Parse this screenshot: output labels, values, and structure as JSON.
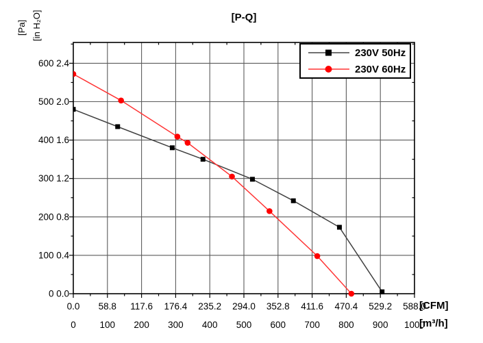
{
  "chart_data": {
    "type": "line",
    "title": "[P-Q]",
    "xlabel_primary": "[CFM]",
    "xlabel_secondary": "[m³/h]",
    "ylabel_primary": "[Pa]",
    "ylabel_secondary": "[in H₂O]",
    "grid": true,
    "legend_position": "top-right",
    "x_axis": {
      "unit": "m3/h",
      "range": [
        0,
        1000
      ],
      "major_step": 100,
      "minor_step": 50,
      "tick_labels_cfm": [
        "0.0",
        "58.8",
        "117.6",
        "176.4",
        "235.2",
        "294.0",
        "352.8",
        "411.6",
        "470.4",
        "529.2",
        "588.0"
      ],
      "tick_labels_m3h": [
        "0",
        "100",
        "200",
        "300",
        "400",
        "500",
        "600",
        "700",
        "800",
        "900",
        "1000"
      ]
    },
    "y_axis": {
      "unit": "Pa",
      "range": [
        0,
        654
      ],
      "major_step": 100,
      "minor_step": 50,
      "tick_labels_pa": [
        "0",
        "100",
        "200",
        "300",
        "400",
        "500",
        "600"
      ],
      "tick_labels_inh2o": [
        "0.0",
        "0.4",
        "0.8",
        "1.2",
        "1.6",
        "2.0",
        "2.4"
      ]
    },
    "series": [
      {
        "name": "230V 50Hz",
        "marker": "square",
        "marker_color": "#000000",
        "line_color": "#404040",
        "points": [
          [
            0,
            480
          ],
          [
            130,
            435
          ],
          [
            290,
            380
          ],
          [
            380,
            350
          ],
          [
            525,
            298
          ],
          [
            645,
            242
          ],
          [
            780,
            173
          ],
          [
            905,
            5
          ]
        ]
      },
      {
        "name": "230V 60Hz",
        "marker": "circle",
        "marker_color": "#ff0000",
        "line_color": "#ff3333",
        "points": [
          [
            0,
            572
          ],
          [
            140,
            503
          ],
          [
            305,
            409
          ],
          [
            335,
            393
          ],
          [
            465,
            305
          ],
          [
            575,
            215
          ],
          [
            715,
            98
          ],
          [
            815,
            0
          ]
        ]
      }
    ],
    "colors": {
      "frame": "#000000",
      "grid": "#5a5a5a",
      "text": "#000000",
      "background": "#ffffff"
    }
  }
}
